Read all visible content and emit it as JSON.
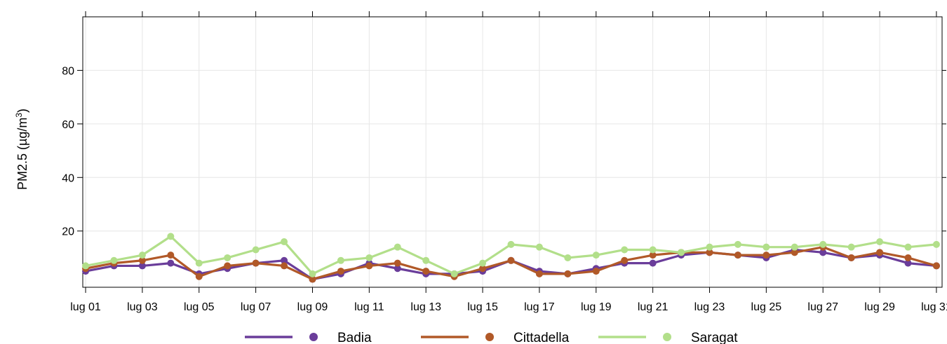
{
  "chart_data": {
    "type": "line",
    "ylabel_main": "PM2.5 (µg/m",
    "ylabel_sup": "3",
    "ylabel_close": ")",
    "ylim": [
      -1,
      100
    ],
    "xlim": [
      0.9,
      31.2
    ],
    "grid": true,
    "legend_position": "bottom",
    "x": [
      1,
      2,
      3,
      4,
      5,
      6,
      7,
      8,
      9,
      10,
      11,
      12,
      13,
      14,
      15,
      16,
      17,
      18,
      19,
      20,
      21,
      22,
      23,
      24,
      25,
      26,
      27,
      28,
      29,
      30,
      31
    ],
    "x_ticks": [
      1,
      3,
      5,
      7,
      9,
      11,
      13,
      15,
      17,
      19,
      21,
      23,
      25,
      27,
      29,
      31
    ],
    "x_tick_labels": [
      "lug 01",
      "lug 03",
      "lug 05",
      "lug 07",
      "lug 09",
      "lug 11",
      "lug 13",
      "lug 15",
      "lug 17",
      "lug 19",
      "lug 21",
      "lug 23",
      "lug 25",
      "lug 27",
      "lug 29",
      "lug 31"
    ],
    "y_ticks": [
      20,
      40,
      60,
      80
    ],
    "y_tick_labels": [
      "20",
      "40",
      "60",
      "80"
    ],
    "series": [
      {
        "name": "Badia",
        "color": "#6a3d9a",
        "values": [
          5,
          7,
          7,
          8,
          4,
          6,
          8,
          9,
          2,
          4,
          8,
          6,
          4,
          4,
          5,
          9,
          5,
          4,
          6,
          8,
          8,
          11,
          12,
          11,
          10,
          13,
          12,
          10,
          11,
          8,
          7
        ]
      },
      {
        "name": "Cittadella",
        "color": "#b15928",
        "values": [
          6,
          8,
          9,
          11,
          3,
          7,
          8,
          7,
          2,
          5,
          7,
          8,
          5,
          3,
          6,
          9,
          4,
          4,
          5,
          9,
          11,
          12,
          12,
          11,
          11,
          12,
          14,
          10,
          12,
          10,
          7
        ]
      },
      {
        "name": "Saragat",
        "color": "#b2df8a",
        "values": [
          7,
          9,
          11,
          18,
          8,
          10,
          13,
          16,
          4,
          9,
          10,
          14,
          9,
          4,
          8,
          15,
          14,
          10,
          11,
          13,
          13,
          12,
          14,
          15,
          14,
          14,
          15,
          14,
          16,
          14,
          15
        ]
      }
    ]
  }
}
